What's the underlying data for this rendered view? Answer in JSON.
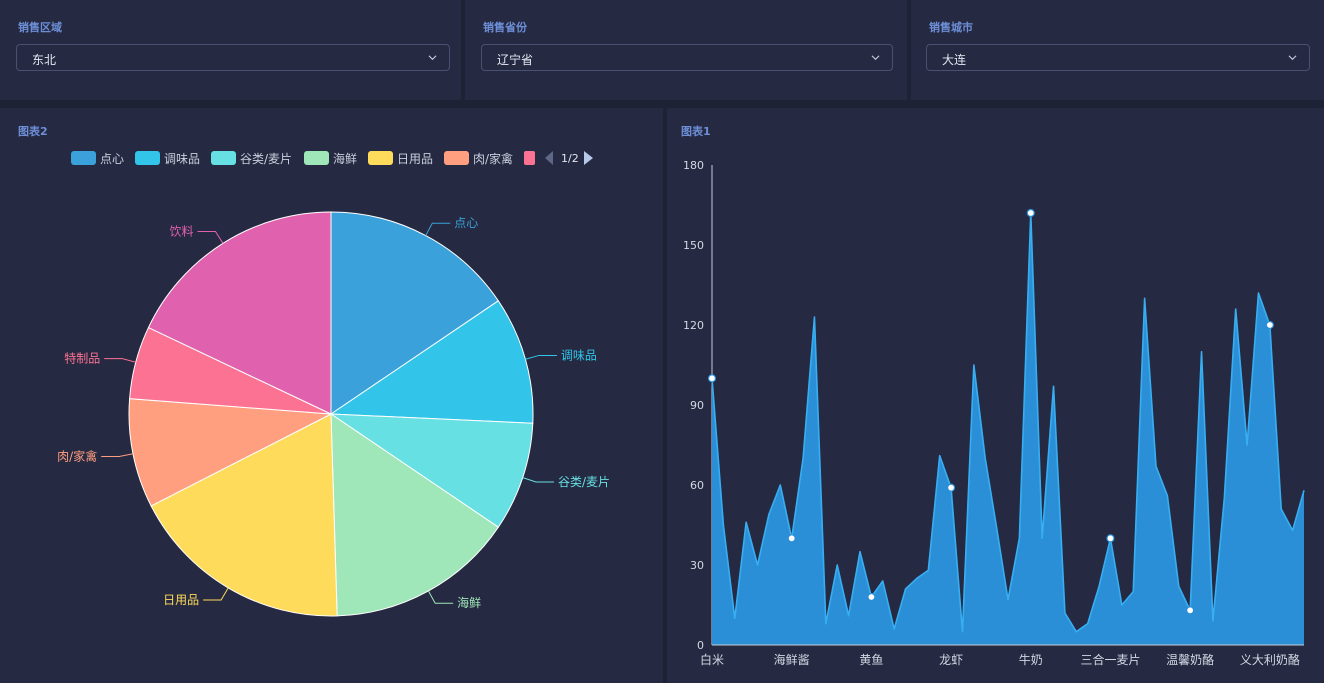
{
  "filters": [
    {
      "label": "销售区域",
      "value": "东北"
    },
    {
      "label": "销售省份",
      "value": "辽宁省"
    },
    {
      "label": "销售城市",
      "value": "大连"
    }
  ],
  "pie_panel": {
    "title": "图表2",
    "legend_page": "1/2"
  },
  "line_panel": {
    "title": "图表1"
  },
  "chart_data": [
    {
      "type": "pie",
      "title": "图表2",
      "legend": {
        "placement": "top",
        "page": "1/2"
      },
      "slices": [
        {
          "name": "点心",
          "value": 16,
          "color": "#3ba1da"
        },
        {
          "name": "调味品",
          "value": 10.5,
          "color": "#32c5e9"
        },
        {
          "name": "谷类/麦片",
          "value": 9,
          "color": "#67e0e3"
        },
        {
          "name": "海鲜",
          "value": 15.5,
          "color": "#9fe6b8"
        },
        {
          "name": "日用品",
          "value": 18.5,
          "color": "#ffdb5c"
        },
        {
          "name": "肉/家禽",
          "value": 9,
          "color": "#ff9f7f"
        },
        {
          "name": "特制品",
          "value": 6,
          "color": "#fb7293"
        },
        {
          "name": "饮料",
          "value": 18.5,
          "color": "#e062ae"
        }
      ]
    },
    {
      "type": "area",
      "title": "图表1",
      "ylim": [
        0,
        180
      ],
      "yticks": [
        0,
        30,
        60,
        90,
        120,
        150,
        180
      ],
      "xtick_labels": [
        "白米",
        "海鲜酱",
        "黄鱼",
        "龙虾",
        "牛奶",
        "三合一麦片",
        "温馨奶酪",
        "义大利奶酪"
      ],
      "label_every": 7,
      "color": "#2a8fd6",
      "values": [
        100,
        45,
        10,
        46,
        30,
        49,
        60,
        40,
        70,
        123,
        8,
        30,
        11,
        35,
        18,
        24,
        6,
        21,
        25,
        28,
        71,
        59,
        5,
        105,
        70,
        44,
        17,
        40,
        162,
        40,
        97,
        12,
        5,
        8,
        22,
        40,
        15,
        20,
        130,
        67,
        56,
        22,
        13,
        110,
        9,
        55,
        126,
        75,
        132,
        120,
        51,
        43,
        58
      ],
      "markers": [
        0,
        7,
        14,
        21,
        28,
        35,
        42,
        49
      ]
    }
  ]
}
